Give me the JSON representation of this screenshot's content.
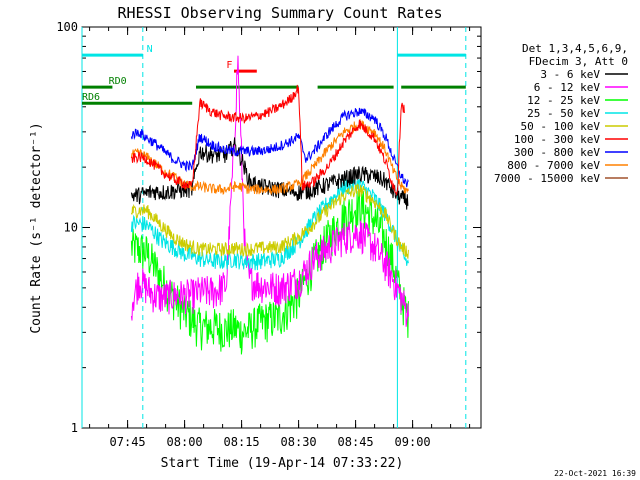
{
  "chart_data": {
    "type": "line",
    "title": "RHESSI Observing Summary Count Rates",
    "xlabel": "Start Time (19-Apr-14 07:33:22)",
    "ylabel": "Count Rate (s⁻¹ detector⁻¹)",
    "y_scale": "log",
    "ylim": [
      1,
      100
    ],
    "xlim_minutes_after_0733": [
      0,
      105
    ],
    "x_ticks": [
      {
        "t": "07:45",
        "label": "07:45"
      },
      {
        "t": "08:00",
        "label": "08:00"
      },
      {
        "t": "08:15",
        "label": "08:15"
      },
      {
        "t": "08:30",
        "label": "08:30"
      },
      {
        "t": "08:45",
        "label": "08:45"
      },
      {
        "t": "09:00",
        "label": "09:00"
      }
    ],
    "y_ticks": [
      {
        "v": 1,
        "label": "1"
      },
      {
        "v": 10,
        "label": "10"
      },
      {
        "v": 100,
        "label": "100"
      }
    ],
    "legend_header": [
      "Det 1,3,4,5,6,9,",
      "FDecim 3, Att 0"
    ],
    "legend_position": "right",
    "grid": false,
    "footer_date": "22-Oct-2021 16:39",
    "flags": [
      {
        "label": "N",
        "color": "#00e5e5",
        "y_level": 0.93,
        "segments": [
          [
            "07:33",
            "07:49"
          ],
          [
            "08:56",
            "09:14"
          ]
        ],
        "label_at": "07:50"
      },
      {
        "label": "F",
        "color": "#ff0000",
        "y_level": 0.89,
        "segments": [
          [
            "08:13",
            "08:19"
          ]
        ],
        "label_at": "08:11"
      },
      {
        "label": "RD0",
        "color": "#008000",
        "y_level": 0.85,
        "segments": [
          [
            "07:33",
            "07:41"
          ],
          [
            "08:03",
            "08:30"
          ],
          [
            "08:35",
            "08:55"
          ],
          [
            "08:57",
            "09:14"
          ]
        ],
        "label_at": "07:40"
      },
      {
        "label": "RD6",
        "color": "#008000",
        "y_level": 0.81,
        "segments": [
          [
            "07:33",
            "08:02"
          ]
        ],
        "label_at": "07:33"
      }
    ],
    "vlines": [
      {
        "t": "07:33",
        "color": "#00e5e5",
        "style": "solid"
      },
      {
        "t": "07:49",
        "color": "#00e5e5",
        "style": "dash"
      },
      {
        "t": "08:56",
        "color": "#00e5e5",
        "style": "solid"
      },
      {
        "t": "09:14",
        "color": "#00e5e5",
        "style": "dash"
      }
    ],
    "series": [
      {
        "name": "3 - 6 keV",
        "color": "#000000",
        "noise": 0.05,
        "points": [
          [
            "07:46",
            14.5
          ],
          [
            "07:48",
            14.5
          ],
          [
            "07:50",
            14.8
          ],
          [
            "07:52",
            15.2
          ],
          [
            "07:54",
            15.0
          ],
          [
            "07:57",
            15.2
          ],
          [
            "08:00",
            15.5
          ],
          [
            "08:02",
            15.5
          ],
          [
            "08:04",
            24
          ],
          [
            "08:08",
            23
          ],
          [
            "08:11",
            23
          ],
          [
            "08:13",
            26
          ],
          [
            "08:15",
            22
          ],
          [
            "08:17",
            17
          ],
          [
            "08:20",
            16
          ],
          [
            "08:25",
            15.5
          ],
          [
            "08:30",
            15
          ],
          [
            "08:34",
            15.5
          ],
          [
            "08:38",
            16.5
          ],
          [
            "08:42",
            17.5
          ],
          [
            "08:46",
            18.5
          ],
          [
            "08:50",
            18
          ],
          [
            "08:53",
            17
          ],
          [
            "08:55",
            15
          ],
          [
            "08:57",
            14
          ],
          [
            "08:59",
            13.5
          ]
        ]
      },
      {
        "name": "6 - 12 keV",
        "color": "#ff00ff",
        "noise": 0.1,
        "points": [
          [
            "07:46",
            4.2
          ],
          [
            "07:48",
            5.5
          ],
          [
            "07:50",
            5.0
          ],
          [
            "07:52",
            4.6
          ],
          [
            "07:54",
            4.5
          ],
          [
            "07:57",
            4.6
          ],
          [
            "08:00",
            4.6
          ],
          [
            "08:02",
            4.6
          ],
          [
            "08:04",
            4.8
          ],
          [
            "08:08",
            4.8
          ],
          [
            "08:11",
            5.2
          ],
          [
            "08:13",
            25
          ],
          [
            "08:14",
            70
          ],
          [
            "08:15",
            22
          ],
          [
            "08:16",
            7
          ],
          [
            "08:17",
            5.5
          ],
          [
            "08:20",
            5.2
          ],
          [
            "08:25",
            5.0
          ],
          [
            "08:30",
            5.5
          ],
          [
            "08:34",
            7.0
          ],
          [
            "08:38",
            8.0
          ],
          [
            "08:42",
            9.0
          ],
          [
            "08:46",
            9.5
          ],
          [
            "08:50",
            8.0
          ],
          [
            "08:53",
            6.5
          ],
          [
            "08:55",
            5.5
          ],
          [
            "08:57",
            4.5
          ],
          [
            "08:59",
            3.6
          ]
        ]
      },
      {
        "name": "12 - 25 keV",
        "color": "#00ff00",
        "noise": 0.12,
        "points": [
          [
            "07:46",
            8.0
          ],
          [
            "07:48",
            7.8
          ],
          [
            "07:50",
            7.5
          ],
          [
            "07:52",
            6.5
          ],
          [
            "07:54",
            5.5
          ],
          [
            "07:57",
            4.5
          ],
          [
            "08:00",
            3.8
          ],
          [
            "08:02",
            3.5
          ],
          [
            "08:04",
            3.2
          ],
          [
            "08:08",
            3.2
          ],
          [
            "08:11",
            3.1
          ],
          [
            "08:13",
            3.2
          ],
          [
            "08:15",
            3.0
          ],
          [
            "08:17",
            3.1
          ],
          [
            "08:20",
            3.4
          ],
          [
            "08:25",
            3.6
          ],
          [
            "08:30",
            4.6
          ],
          [
            "08:34",
            6.8
          ],
          [
            "08:38",
            9.0
          ],
          [
            "08:42",
            11.5
          ],
          [
            "08:46",
            13.0
          ],
          [
            "08:50",
            11.0
          ],
          [
            "08:53",
            8.5
          ],
          [
            "08:55",
            6.5
          ],
          [
            "08:57",
            4.5
          ],
          [
            "08:59",
            3.5
          ]
        ]
      },
      {
        "name": "25 - 50 keV",
        "color": "#00e5e5",
        "noise": 0.05,
        "points": [
          [
            "07:46",
            10.5
          ],
          [
            "07:48",
            10.5
          ],
          [
            "07:50",
            10.3
          ],
          [
            "07:52",
            9.5
          ],
          [
            "07:54",
            8.6
          ],
          [
            "07:57",
            8.0
          ],
          [
            "08:00",
            7.4
          ],
          [
            "08:02",
            7.2
          ],
          [
            "08:04",
            7.0
          ],
          [
            "08:08",
            6.8
          ],
          [
            "08:11",
            6.8
          ],
          [
            "08:13",
            7.0
          ],
          [
            "08:15",
            6.8
          ],
          [
            "08:17",
            6.8
          ],
          [
            "08:20",
            6.8
          ],
          [
            "08:25",
            7.0
          ],
          [
            "08:30",
            8.5
          ],
          [
            "08:34",
            11.0
          ],
          [
            "08:38",
            13.5
          ],
          [
            "08:42",
            16.0
          ],
          [
            "08:46",
            16.5
          ],
          [
            "08:50",
            14.0
          ],
          [
            "08:53",
            11.5
          ],
          [
            "08:55",
            9.5
          ],
          [
            "08:57",
            7.5
          ],
          [
            "08:59",
            6.5
          ]
        ]
      },
      {
        "name": "50 - 100 keV",
        "color": "#cccc00",
        "noise": 0.04,
        "points": [
          [
            "07:46",
            12.0
          ],
          [
            "07:48",
            12.2
          ],
          [
            "07:50",
            12.2
          ],
          [
            "07:52",
            11.2
          ],
          [
            "07:54",
            10.2
          ],
          [
            "07:57",
            9.0
          ],
          [
            "08:00",
            8.3
          ],
          [
            "08:02",
            8.0
          ],
          [
            "08:04",
            7.8
          ],
          [
            "08:08",
            7.8
          ],
          [
            "08:11",
            7.8
          ],
          [
            "08:13",
            7.9
          ],
          [
            "08:15",
            7.8
          ],
          [
            "08:17",
            7.8
          ],
          [
            "08:20",
            7.9
          ],
          [
            "08:25",
            8.0
          ],
          [
            "08:30",
            9.0
          ],
          [
            "08:34",
            10.5
          ],
          [
            "08:38",
            12.5
          ],
          [
            "08:42",
            14.5
          ],
          [
            "08:46",
            15.5
          ],
          [
            "08:50",
            13.5
          ],
          [
            "08:53",
            11.5
          ],
          [
            "08:55",
            9.5
          ],
          [
            "08:57",
            8.0
          ],
          [
            "08:59",
            7.5
          ]
        ]
      },
      {
        "name": "100 - 300 keV",
        "color": "#ff0000",
        "noise": 0.03,
        "points": [
          [
            "07:46",
            22.0
          ],
          [
            "07:48",
            22.5
          ],
          [
            "07:50",
            22.0
          ],
          [
            "07:52",
            20.5
          ],
          [
            "07:54",
            19.0
          ],
          [
            "07:57",
            17.5
          ],
          [
            "08:00",
            16.5
          ],
          [
            "08:02",
            16.0
          ],
          [
            "08:04",
            42.0
          ],
          [
            "08:07",
            38.0
          ],
          [
            "08:10",
            36.0
          ],
          [
            "08:13",
            35.5
          ],
          [
            "08:16",
            35.0
          ],
          [
            "08:19",
            36.0
          ],
          [
            "08:22",
            37.5
          ],
          [
            "08:25",
            40.0
          ],
          [
            "08:28",
            44.0
          ],
          [
            "08:30",
            50.0
          ],
          [
            "08:31",
            16.0
          ],
          [
            "08:34",
            17.0
          ],
          [
            "08:38",
            20.5
          ],
          [
            "08:42",
            27.0
          ],
          [
            "08:46",
            33.0
          ],
          [
            "08:50",
            28.0
          ],
          [
            "08:53",
            21.0
          ],
          [
            "08:55",
            16.0
          ],
          [
            "08:56",
            15.0
          ],
          [
            "08:57",
            42.0
          ],
          [
            "08:58",
            38.0
          ]
        ]
      },
      {
        "name": "300 - 800 keV",
        "color": "#0000ff",
        "noise": 0.03,
        "points": [
          [
            "07:46",
            29.0
          ],
          [
            "07:48",
            30.0
          ],
          [
            "07:50",
            28.0
          ],
          [
            "07:52",
            26.5
          ],
          [
            "07:54",
            24.5
          ],
          [
            "07:57",
            22.0
          ],
          [
            "08:00",
            20.5
          ],
          [
            "08:02",
            20.0
          ],
          [
            "08:04",
            28.5
          ],
          [
            "08:07",
            26.0
          ],
          [
            "08:10",
            24.5
          ],
          [
            "08:13",
            24.0
          ],
          [
            "08:16",
            24.0
          ],
          [
            "08:19",
            24.0
          ],
          [
            "08:22",
            24.5
          ],
          [
            "08:25",
            25.5
          ],
          [
            "08:28",
            27.0
          ],
          [
            "08:30",
            28.5
          ],
          [
            "08:32",
            22.0
          ],
          [
            "08:34",
            24.0
          ],
          [
            "08:38",
            30.0
          ],
          [
            "08:42",
            36.0
          ],
          [
            "08:46",
            38.0
          ],
          [
            "08:50",
            35.0
          ],
          [
            "08:53",
            28.0
          ],
          [
            "08:55",
            22.0
          ],
          [
            "08:57",
            18.0
          ],
          [
            "08:59",
            16.0
          ]
        ]
      },
      {
        "name": "800 - 7000 keV",
        "color": "#ff8000",
        "noise": 0.03,
        "points": [
          [
            "07:46",
            23.0
          ],
          [
            "07:48",
            23.5
          ],
          [
            "07:50",
            22.5
          ],
          [
            "07:52",
            21.0
          ],
          [
            "07:54",
            19.5
          ],
          [
            "07:57",
            18.0
          ],
          [
            "08:00",
            16.5
          ],
          [
            "08:02",
            16.0
          ],
          [
            "08:04",
            16.0
          ],
          [
            "08:08",
            15.5
          ],
          [
            "08:11",
            15.5
          ],
          [
            "08:13",
            16.0
          ],
          [
            "08:15",
            16.0
          ],
          [
            "08:17",
            15.5
          ],
          [
            "08:20",
            15.5
          ],
          [
            "08:25",
            15.5
          ],
          [
            "08:30",
            16.5
          ],
          [
            "08:34",
            20.0
          ],
          [
            "08:38",
            25.0
          ],
          [
            "08:42",
            30.0
          ],
          [
            "08:46",
            33.0
          ],
          [
            "08:50",
            30.0
          ],
          [
            "08:53",
            24.0
          ],
          [
            "08:55",
            19.0
          ],
          [
            "08:57",
            16.0
          ],
          [
            "08:59",
            15.0
          ]
        ]
      },
      {
        "name": "7000 - 15000 keV",
        "color": "#a0522d",
        "noise": 0.0,
        "points": []
      }
    ]
  }
}
